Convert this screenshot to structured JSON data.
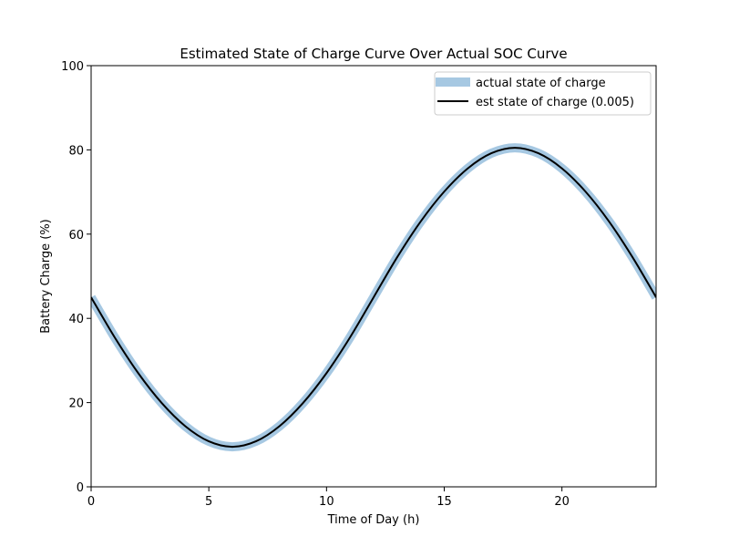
{
  "chart_data": {
    "type": "line",
    "title": "Estimated State of Charge Curve Over Actual SOC Curve",
    "xlabel": "Time of Day (h)",
    "ylabel": "Battery Charge (%)",
    "xlim": [
      0,
      24
    ],
    "ylim": [
      0,
      100
    ],
    "xticks": [
      0,
      5,
      10,
      15,
      20
    ],
    "yticks": [
      0,
      20,
      40,
      60,
      80,
      100
    ],
    "grid": false,
    "legend_position": "top-right",
    "series": [
      {
        "name": "actual state of charge",
        "color": "#a6c8e2",
        "style": "thick-band",
        "x": [
          0,
          1,
          2,
          3,
          4,
          5,
          6,
          7,
          8,
          9,
          10,
          11,
          12,
          13,
          14,
          15,
          16,
          17,
          18,
          19,
          20,
          21,
          22,
          23,
          24
        ],
        "y": [
          45,
          35.5,
          27,
          19.9,
          14.4,
          10.8,
          9.5,
          10.8,
          14.4,
          19.9,
          27,
          35.5,
          45,
          54.5,
          63,
          70.1,
          75.6,
          79.2,
          80.5,
          79.2,
          75.6,
          70.1,
          63,
          54.5,
          45
        ]
      },
      {
        "name": "est state of charge (0.005)",
        "color": "#000000",
        "style": "line",
        "x": [
          0,
          1,
          2,
          3,
          4,
          5,
          6,
          7,
          8,
          9,
          10,
          11,
          12,
          13,
          14,
          15,
          16,
          17,
          18,
          19,
          20,
          21,
          22,
          23,
          24
        ],
        "y": [
          45,
          35.5,
          27,
          19.9,
          14.4,
          10.8,
          9.5,
          10.8,
          14.4,
          19.9,
          27,
          35.5,
          45,
          54.5,
          63,
          70.1,
          75.6,
          79.2,
          80.5,
          79.2,
          75.6,
          70.1,
          63,
          54.5,
          45
        ]
      }
    ]
  }
}
